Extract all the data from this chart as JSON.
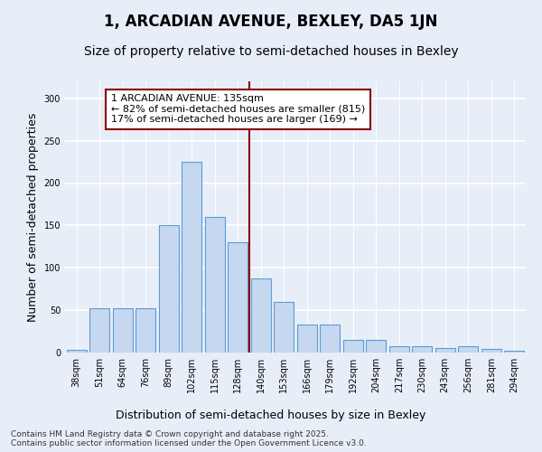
{
  "title": "1, ARCADIAN AVENUE, BEXLEY, DA5 1JN",
  "subtitle": "Size of property relative to semi-detached houses in Bexley",
  "xlabel": "Distribution of semi-detached houses by size in Bexley",
  "ylabel": "Number of semi-detached properties",
  "categories": [
    "38sqm",
    "51sqm",
    "64sqm",
    "76sqm",
    "89sqm",
    "102sqm",
    "115sqm",
    "128sqm",
    "140sqm",
    "153sqm",
    "166sqm",
    "179sqm",
    "192sqm",
    "204sqm",
    "217sqm",
    "230sqm",
    "243sqm",
    "256sqm",
    "281sqm",
    "294sqm"
  ],
  "values": [
    3,
    52,
    52,
    52,
    150,
    225,
    160,
    130,
    87,
    60,
    33,
    33,
    15,
    15,
    8,
    8,
    5,
    7,
    4,
    2
  ],
  "bar_color": "#c5d8f0",
  "bar_edge_color": "#5b9bd5",
  "vline_color": "#8b0000",
  "annotation_text": "1 ARCADIAN AVENUE: 135sqm\n← 82% of semi-detached houses are smaller (815)\n17% of semi-detached houses are larger (169) →",
  "annotation_box_color": "#ffffff",
  "annotation_box_edge": "#8b0000",
  "ylim": [
    0,
    320
  ],
  "yticks": [
    0,
    50,
    100,
    150,
    200,
    250,
    300
  ],
  "footer": "Contains HM Land Registry data © Crown copyright and database right 2025.\nContains public sector information licensed under the Open Government Licence v3.0.",
  "bg_color": "#e8eef8",
  "plot_bg_color": "#e8eef8",
  "grid_color": "#ffffff",
  "title_fontsize": 12,
  "subtitle_fontsize": 10,
  "axis_label_fontsize": 9,
  "tick_fontsize": 7,
  "footer_fontsize": 6.5,
  "ann_fontsize": 8
}
